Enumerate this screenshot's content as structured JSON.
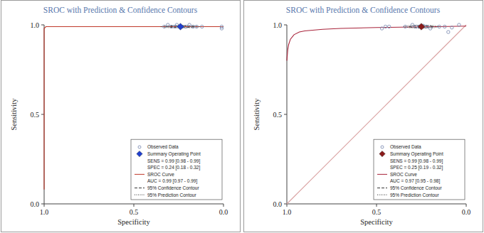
{
  "chart_data": [
    {
      "type": "scatter",
      "title": "SROC with Prediction & Confidence Contours",
      "x_label": "Specificity",
      "y_label": "Sensitivity",
      "xlim": [
        1,
        0
      ],
      "ylim": [
        0,
        1
      ],
      "xticks": [
        {
          "value": 1,
          "label": "1.0"
        },
        0.5,
        {
          "value": 0,
          "label": "0.0"
        }
      ],
      "yticks": [
        {
          "value": 0,
          "label": "0.0"
        },
        0.5,
        {
          "value": 1,
          "label": "1.0"
        }
      ],
      "grid": false,
      "legend": "lower right",
      "series": [
        {
          "name": "Observed Data",
          "color": "#8090b4",
          "marker": "circle",
          "line_style": "none",
          "x": [
            0.33,
            0.31,
            0.29,
            0.27,
            0.26,
            0.23,
            0.21,
            0.19,
            0.17,
            0.15,
            0.12,
            0.01,
            0.01
          ],
          "y": [
            0.99,
            1.0,
            0.99,
            0.99,
            1.0,
            0.99,
            0.99,
            1.0,
            0.99,
            0.99,
            0.99,
            0.99,
            0.98
          ]
        },
        {
          "name": "Summary Operating Point",
          "color": "#1f3fd0",
          "marker": "diamond",
          "line_style": "none",
          "notes": [
            "SENS = 0.99 [0.98 - 0.99]",
            "SPEC = 0.24 [0.18 - 0.32]"
          ],
          "x": [
            0.24
          ],
          "y": [
            0.99
          ]
        },
        {
          "name": "SROC Curve",
          "color": "#c0392b",
          "marker": "none",
          "line_style": "solid",
          "notes": [
            "AUC = 0.99 [0.97 - 0.99]"
          ],
          "x": [
            1,
            1,
            1,
            0.99,
            0.9,
            0.5,
            0
          ],
          "y": [
            0.08,
            0.5,
            0.98,
            0.99,
            0.99,
            0.99,
            0.99
          ]
        },
        {
          "name": "95% Confidence Contour",
          "color": "#333333",
          "marker": "none",
          "line_style": "dashed",
          "x": [
            0.32,
            0.297,
            0.24,
            0.183,
            0.16,
            0.183,
            0.24,
            0.297,
            0.32
          ],
          "y": [
            0.99,
            0.9935,
            0.995,
            0.9935,
            0.99,
            0.9865,
            0.985,
            0.9865,
            0.99
          ]
        },
        {
          "name": "95% Prediction Contour",
          "color": "#333333",
          "marker": "none",
          "line_style": "dotted",
          "x": [
            0.35,
            0.318,
            0.24,
            0.162,
            0.13,
            0.162,
            0.24,
            0.318,
            0.35
          ],
          "y": [
            0.99,
            0.995,
            0.997,
            0.995,
            0.99,
            0.985,
            0.983,
            0.985,
            0.99
          ]
        }
      ]
    },
    {
      "type": "scatter",
      "title": "SROC with Prediction & Confidence Contours",
      "x_label": "Specificity",
      "y_label": "Sensitivity",
      "xlim": [
        1,
        0
      ],
      "ylim": [
        0,
        1
      ],
      "xticks": [
        {
          "value": 1,
          "label": "1.0"
        },
        0.5,
        {
          "value": 0,
          "label": "0.0"
        }
      ],
      "yticks": [
        {
          "value": 0,
          "label": "0.0"
        },
        0.5,
        {
          "value": 1,
          "label": "1.0"
        }
      ],
      "grid": false,
      "legend": "lower right",
      "series": [
        {
          "color": "#d9a0a0",
          "marker": "none",
          "line_style": "solid",
          "x": [
            1,
            0
          ],
          "y": [
            0,
            1
          ]
        },
        {
          "name": "Observed Data",
          "color": "#8090b4",
          "marker": "circle",
          "line_style": "none",
          "x": [
            0.47,
            0.45,
            0.43,
            0.34,
            0.3,
            0.28,
            0.26,
            0.24,
            0.22,
            0.2,
            0.15,
            0.12,
            0.1,
            0.08,
            0.04
          ],
          "y": [
            0.98,
            0.99,
            0.99,
            0.99,
            1.0,
            0.99,
            0.99,
            0.995,
            0.99,
            0.98,
            0.99,
            0.99,
            0.96,
            0.985,
            1.0
          ]
        },
        {
          "name": "Summary Operating Point",
          "color": "#8b1a1a",
          "marker": "diamond",
          "line_style": "none",
          "notes": [
            "SENS = 0.99 [0.98 - 0.99]",
            "SPEC = 0.25 [0.19 - 0.32]"
          ],
          "x": [
            0.25
          ],
          "y": [
            0.99
          ]
        },
        {
          "name": "SROC Curve",
          "color": "#a8233a",
          "marker": "none",
          "line_style": "solid",
          "notes": [
            "AUC = 0.97 [0.95 - 0.98]"
          ],
          "x": [
            1,
            0.995,
            0.99,
            0.98,
            0.96,
            0.93,
            0.9,
            0.8,
            0.7,
            0.5,
            0.3,
            0.1,
            0
          ],
          "y": [
            0.8,
            0.86,
            0.89,
            0.92,
            0.945,
            0.96,
            0.966,
            0.975,
            0.98,
            0.985,
            0.988,
            0.991,
            0.993
          ]
        },
        {
          "name": "95% Confidence Contour",
          "color": "#333333",
          "marker": "none",
          "line_style": "dashed",
          "x": [
            0.32,
            0.3,
            0.25,
            0.2,
            0.18,
            0.2,
            0.25,
            0.3,
            0.32
          ],
          "y": [
            0.99,
            0.994,
            0.996,
            0.994,
            0.99,
            0.986,
            0.984,
            0.986,
            0.99
          ]
        },
        {
          "name": "95% Prediction Contour",
          "color": "#333333",
          "marker": "none",
          "line_style": "dotted",
          "x": [
            0.35,
            0.32,
            0.25,
            0.18,
            0.15,
            0.18,
            0.25,
            0.32,
            0.35
          ],
          "y": [
            0.99,
            0.996,
            0.999,
            0.996,
            0.99,
            0.984,
            0.981,
            0.984,
            0.99
          ]
        }
      ]
    }
  ]
}
